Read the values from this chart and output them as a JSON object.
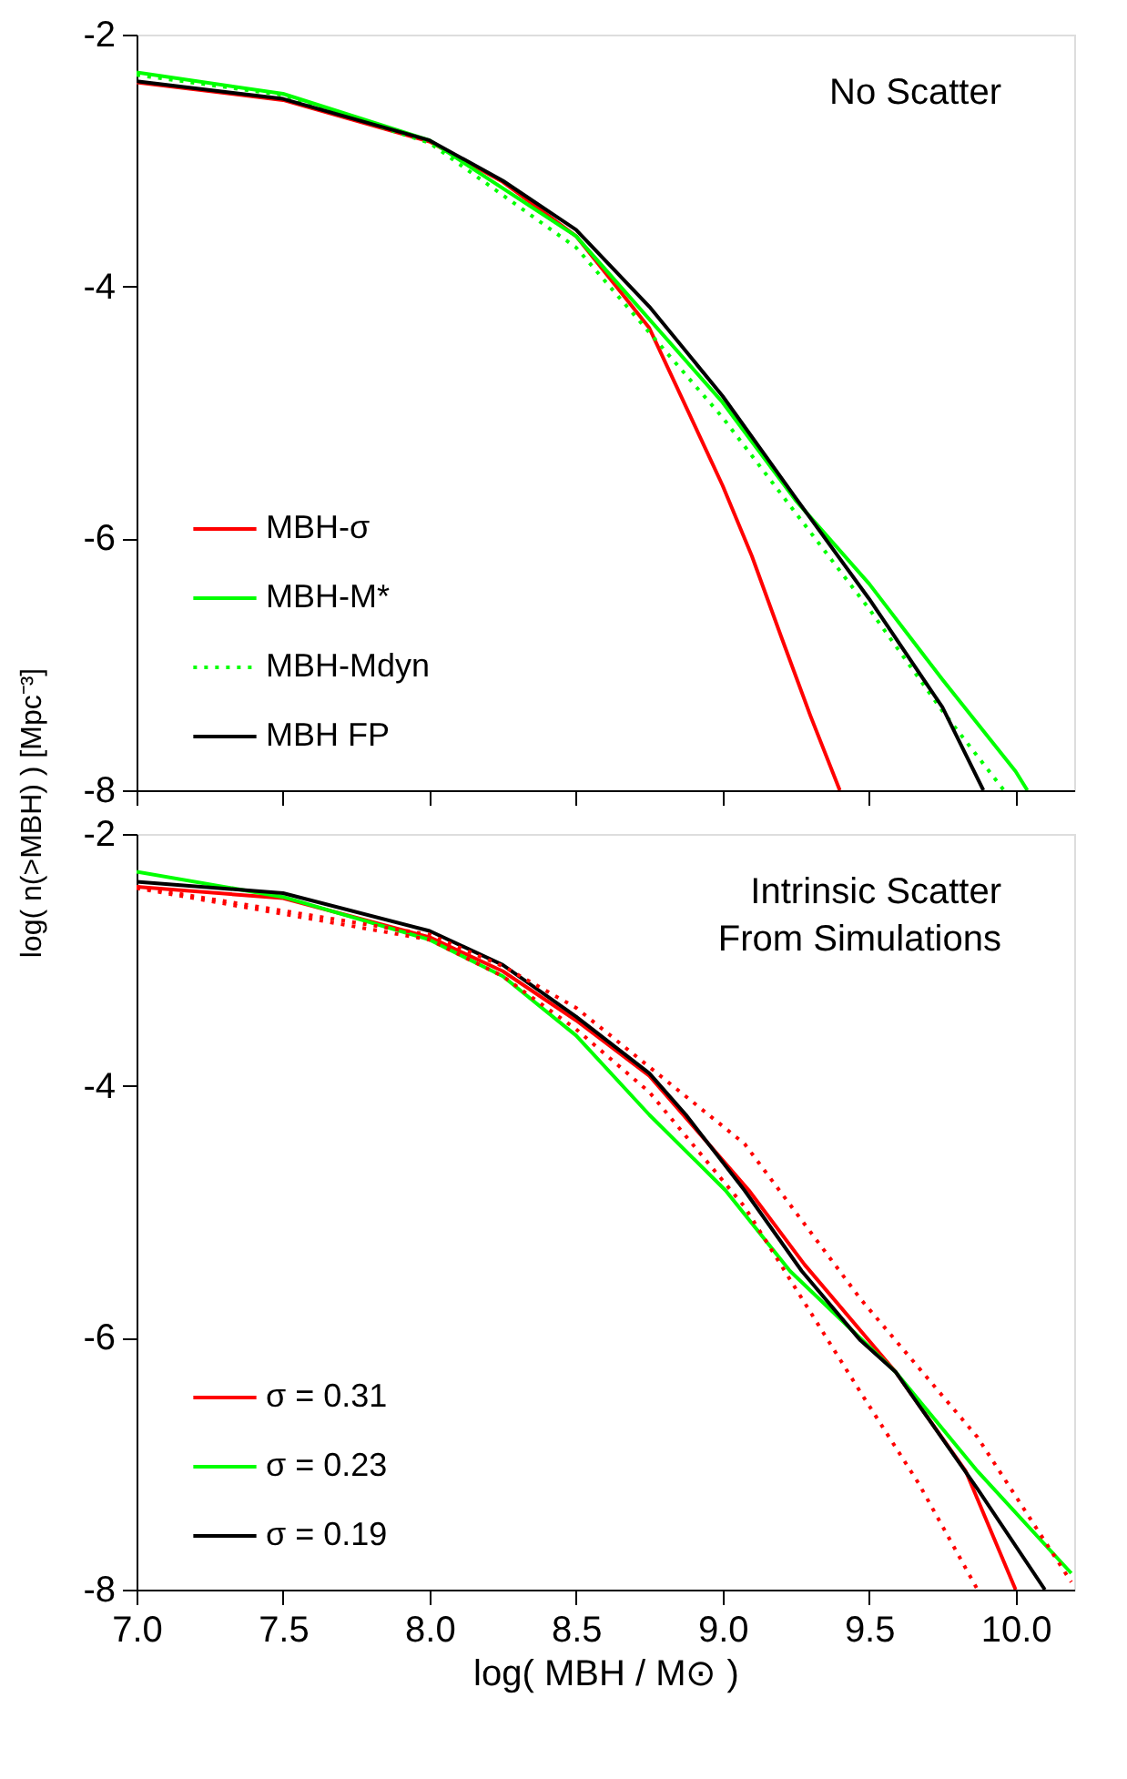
{
  "chart_data": [
    {
      "type": "line",
      "ylabel": "log( n(>MBH) )  [Mpc⁻³]",
      "annotations": [
        "No Scatter"
      ],
      "legend": "bottom left",
      "tick_labels": "y",
      "grid": false,
      "xlim": [
        7.0,
        10.2
      ],
      "xticks": [
        {
          "value": 7.0,
          "label": null
        },
        {
          "value": 7.5,
          "label": null
        },
        {
          "value": 8.0,
          "label": null
        },
        {
          "value": 8.5,
          "label": null
        },
        {
          "value": 9.0,
          "label": null
        },
        {
          "value": 9.5,
          "label": null
        },
        {
          "value": 10.0,
          "label": null
        }
      ],
      "ylim": [
        -8,
        -2
      ],
      "yticks": [
        -2,
        -4,
        -6,
        -8
      ],
      "series": [
        {
          "name": "MBH-σ",
          "color": "#ff0000",
          "line_style": "solid",
          "x": [
            7.0,
            7.5,
            8.0,
            8.25,
            8.5,
            8.75,
            9.0,
            9.1,
            9.2,
            9.3,
            9.4
          ],
          "values": [
            -2.38,
            -2.52,
            -2.85,
            -3.17,
            -3.6,
            -4.33,
            -5.58,
            -6.14,
            -6.78,
            -7.41,
            -8.0
          ]
        },
        {
          "name": "MBH-M*",
          "color": "#00ff00",
          "line_style": "solid",
          "x": [
            7.0,
            7.5,
            8.0,
            8.5,
            9.0,
            9.25,
            9.5,
            9.75,
            10.0,
            10.04
          ],
          "values": [
            -2.3,
            -2.47,
            -2.84,
            -3.6,
            -4.92,
            -5.7,
            -6.36,
            -7.12,
            -7.85,
            -8.0
          ]
        },
        {
          "name": "MBH-Mdyn",
          "color": "#00ff00",
          "line_style": "dotted",
          "x": [
            7.0,
            7.5,
            8.0,
            8.5,
            9.0,
            9.25,
            9.5,
            9.75,
            9.96
          ],
          "values": [
            -2.32,
            -2.48,
            -2.86,
            -3.69,
            -5.04,
            -5.8,
            -6.56,
            -7.37,
            -8.0
          ]
        },
        {
          "name": "MBH FP",
          "color": "#000000",
          "line_style": "solid",
          "x": [
            7.0,
            7.5,
            8.0,
            8.25,
            8.5,
            8.75,
            9.0,
            9.25,
            9.5,
            9.75,
            9.89
          ],
          "values": [
            -2.37,
            -2.51,
            -2.84,
            -3.16,
            -3.55,
            -4.16,
            -4.87,
            -5.68,
            -6.48,
            -7.34,
            -8.0
          ]
        }
      ]
    },
    {
      "type": "line",
      "xlabel": "log( MBH / M⊙ )",
      "annotations": [
        "Intrinsic Scatter\n   From Simulations"
      ],
      "legend": "bottom left",
      "grid": false,
      "xlim": [
        7.0,
        10.2
      ],
      "xticks": [
        {
          "value": 7.0,
          "label": "7.0"
        },
        {
          "value": 7.5,
          "label": "7.5"
        },
        {
          "value": 8.0,
          "label": "8.0"
        },
        {
          "value": 8.5,
          "label": "8.5"
        },
        {
          "value": 9.0,
          "label": "9.0"
        },
        {
          "value": 9.5,
          "label": "9.5"
        },
        {
          "value": 10.0,
          "label": "10.0"
        }
      ],
      "ylim": [
        -8,
        -2
      ],
      "yticks": [
        -2,
        -4,
        -6,
        -8
      ],
      "series": [
        {
          "name": "σ = 0.31",
          "color": "#ff0000",
          "line_style": "solid",
          "x": [
            7.0,
            7.5,
            8.0,
            8.25,
            8.5,
            8.75,
            9.09,
            9.28,
            9.59,
            9.83,
            10.0
          ],
          "values": [
            -2.42,
            -2.51,
            -2.82,
            -3.09,
            -3.48,
            -3.92,
            -4.83,
            -5.42,
            -6.27,
            -7.06,
            -8.0
          ]
        },
        {
          "name": "σ = 0.23",
          "color": "#00ff00",
          "line_style": "solid",
          "x": [
            7.0,
            7.5,
            8.0,
            8.25,
            8.5,
            8.75,
            9.01,
            9.23,
            9.59,
            9.87,
            10.19
          ],
          "values": [
            -2.3,
            -2.5,
            -2.84,
            -3.13,
            -3.6,
            -4.23,
            -4.83,
            -5.47,
            -6.27,
            -7.06,
            -7.87
          ]
        },
        {
          "name": "σ = 0.19",
          "color": "#000000",
          "line_style": "solid",
          "x": [
            7.0,
            7.5,
            8.0,
            8.25,
            8.5,
            8.75,
            8.875,
            9.075,
            9.27,
            9.47,
            9.59,
            9.87,
            10.1
          ],
          "values": [
            -2.38,
            -2.47,
            -2.77,
            -3.04,
            -3.45,
            -3.9,
            -4.23,
            -4.83,
            -5.47,
            -6.02,
            -6.27,
            -7.2,
            -8.0
          ]
        },
        {
          "color": "#ff0000",
          "line_style": "dotted",
          "x": [
            7.0,
            8.0,
            8.25,
            8.5,
            8.75,
            9.075,
            9.47,
            9.87,
            10.19
          ],
          "values": [
            -2.42,
            -2.8,
            -3.05,
            -3.38,
            -3.85,
            -4.46,
            -5.69,
            -6.79,
            -7.94
          ]
        },
        {
          "color": "#ff0000",
          "line_style": "dotted",
          "x": [
            7.0,
            8.0,
            8.25,
            8.5,
            8.75,
            9.075,
            9.47,
            9.67,
            9.87
          ],
          "values": [
            -2.43,
            -2.84,
            -3.13,
            -3.55,
            -4.05,
            -4.96,
            -6.43,
            -7.16,
            -8.0
          ]
        }
      ]
    }
  ]
}
